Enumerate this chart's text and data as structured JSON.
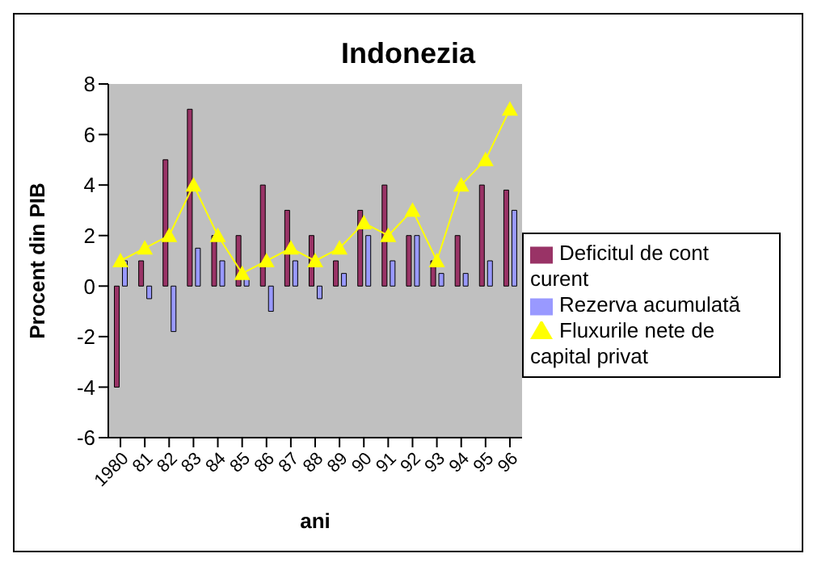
{
  "chart_data": {
    "type": "bar",
    "title": "Indonezia",
    "xlabel": "ani",
    "ylabel": "Procent din PIB",
    "categories": [
      "1980",
      "81",
      "82",
      "83",
      "84",
      "85",
      "86",
      "87",
      "88",
      "89",
      "90",
      "91",
      "92",
      "93",
      "94",
      "95",
      "96"
    ],
    "series": [
      {
        "name": "Deficitul de cont curent",
        "color": "#993366",
        "values": [
          -4,
          1,
          5,
          7,
          2,
          2,
          4,
          3,
          2,
          1,
          3,
          4,
          2,
          1,
          2,
          4,
          3.8
        ]
      },
      {
        "name": "Rezerva acumulată",
        "color": "#9999ff",
        "values": [
          1,
          -0.5,
          -1.8,
          1.5,
          1,
          0.3,
          -1,
          1,
          -0.5,
          0.5,
          2,
          1,
          2,
          0.5,
          0.5,
          1,
          3
        ]
      },
      {
        "name": "Fluxurile nete de capital privat",
        "type": "line",
        "color": "#ffff00",
        "marker": "triangle",
        "values": [
          1,
          1.5,
          2,
          4,
          2,
          0.5,
          1,
          1.5,
          1,
          1.5,
          2.5,
          2,
          3,
          1,
          4,
          5,
          7
        ]
      }
    ],
    "ylim": [
      -6,
      8
    ],
    "yticks": [
      -6,
      -4,
      -2,
      0,
      2,
      4,
      6,
      8
    ],
    "grid": false,
    "legend": "right"
  }
}
